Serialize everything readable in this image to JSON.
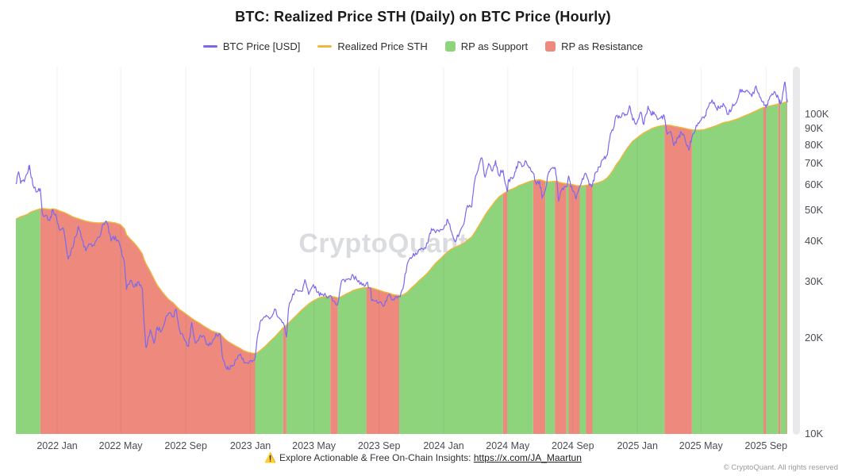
{
  "legend": {
    "items": [
      {
        "label": "BTC Price [USD]",
        "swatch": "line",
        "color": "#7b68ee"
      },
      {
        "label": "Realized Price STH",
        "swatch": "line",
        "color": "#efb73e"
      },
      {
        "label": "RP as Support",
        "swatch": "box",
        "color": "#8ed47c"
      },
      {
        "label": "RP as Resistance",
        "swatch": "box",
        "color": "#ee8a7d"
      }
    ]
  },
  "watermark": {
    "text": "CryptoQuant"
  },
  "footer": {
    "icon": "⚠️",
    "text": "Explore Actionable & Free On-Chain Insights:",
    "link_text": "https://x.com/JA_Maartun"
  },
  "copyright": "© CryptoQuant. All rights reserved",
  "chart_data": {
    "type": "line",
    "title": "BTC: Realized Price STH (Daily) on BTC Price (Hourly)",
    "y_scale": "log",
    "y_domain": [
      10000,
      140000
    ],
    "grid": "vertical-only",
    "legend_position": "top-center",
    "y_axis_side": "right",
    "y_ticks": [
      {
        "value": 10000,
        "label": "10K"
      },
      {
        "value": 20000,
        "label": "20K"
      },
      {
        "value": 30000,
        "label": "30K"
      },
      {
        "value": 40000,
        "label": "40K"
      },
      {
        "value": 50000,
        "label": "50K"
      },
      {
        "value": 60000,
        "label": "60K"
      },
      {
        "value": 70000,
        "label": "70K"
      },
      {
        "value": 80000,
        "label": "80K"
      },
      {
        "value": 90000,
        "label": "90K"
      },
      {
        "value": 100000,
        "label": "100K"
      }
    ],
    "x_ticks": [
      {
        "date": "2022-01-01",
        "label": "2022 Jan"
      },
      {
        "date": "2022-05-01",
        "label": "2022 May"
      },
      {
        "date": "2022-09-01",
        "label": "2022 Sep"
      },
      {
        "date": "2023-01-01",
        "label": "2023 Jan"
      },
      {
        "date": "2023-05-01",
        "label": "2023 May"
      },
      {
        "date": "2023-09-01",
        "label": "2023 Sep"
      },
      {
        "date": "2024-01-01",
        "label": "2024 Jan"
      },
      {
        "date": "2024-05-01",
        "label": "2024 May"
      },
      {
        "date": "2024-09-01",
        "label": "2024 Sep"
      },
      {
        "date": "2025-01-01",
        "label": "2025 Jan"
      },
      {
        "date": "2025-05-01",
        "label": "2025 May"
      },
      {
        "date": "2025-09-01",
        "label": "2025 Sep"
      }
    ],
    "series": [
      {
        "name": "BTC Price [USD]",
        "color": "#7b68ee"
      },
      {
        "name": "Realized Price STH",
        "color": "#efb73e"
      }
    ],
    "fill": {
      "rule": "area under Realized Price STH; support color where BTC >= RP, resistance color where BTC < RP",
      "support_label": "RP as Support",
      "support_color": "#8ed47c",
      "resistance_label": "RP as Resistance",
      "resistance_color": "#ee8a7d"
    },
    "columns": [
      "date",
      "btc_price_usd",
      "realized_price_sth_usd"
    ],
    "points": [
      [
        "2021-10-15",
        60500,
        47000
      ],
      [
        "2021-10-20",
        66000,
        47400
      ],
      [
        "2021-10-24",
        60800,
        47800
      ],
      [
        "2021-10-31",
        61500,
        48200
      ],
      [
        "2021-11-08",
        67500,
        48800
      ],
      [
        "2021-11-10",
        68800,
        49200
      ],
      [
        "2021-11-16",
        60200,
        49700
      ],
      [
        "2021-11-24",
        57200,
        50200
      ],
      [
        "2021-11-30",
        58500,
        50600
      ],
      [
        "2021-12-04",
        49000,
        50700
      ],
      [
        "2021-12-11",
        48300,
        50600
      ],
      [
        "2021-12-18",
        46500,
        50400
      ],
      [
        "2021-12-24",
        50300,
        50600
      ],
      [
        "2021-12-31",
        47200,
        50300
      ],
      [
        "2022-01-06",
        43300,
        49800
      ],
      [
        "2022-01-13",
        43900,
        49400
      ],
      [
        "2022-01-22",
        35200,
        48600
      ],
      [
        "2022-01-29",
        38200,
        47900
      ],
      [
        "2022-02-05",
        41400,
        47400
      ],
      [
        "2022-02-10",
        44600,
        47100
      ],
      [
        "2022-02-17",
        40500,
        46700
      ],
      [
        "2022-02-24",
        37400,
        46300
      ],
      [
        "2022-03-04",
        39200,
        46000
      ],
      [
        "2022-03-12",
        38900,
        45800
      ],
      [
        "2022-03-21",
        41200,
        45700
      ],
      [
        "2022-03-29",
        45400,
        45800
      ],
      [
        "2022-04-05",
        45800,
        46100
      ],
      [
        "2022-04-13",
        40100,
        45900
      ],
      [
        "2022-04-21",
        41500,
        45700
      ],
      [
        "2022-04-30",
        38600,
        45200
      ],
      [
        "2022-05-08",
        34300,
        43800
      ],
      [
        "2022-05-12",
        28300,
        42000
      ],
      [
        "2022-05-19",
        30200,
        40700
      ],
      [
        "2022-05-27",
        28800,
        39500
      ],
      [
        "2022-06-04",
        29900,
        38000
      ],
      [
        "2022-06-11",
        28500,
        36500
      ],
      [
        "2022-06-14",
        22500,
        35200
      ],
      [
        "2022-06-18",
        18600,
        34000
      ],
      [
        "2022-06-26",
        21200,
        32200
      ],
      [
        "2022-07-03",
        19200,
        30500
      ],
      [
        "2022-07-09",
        21600,
        29200
      ],
      [
        "2022-07-17",
        21000,
        28000
      ],
      [
        "2022-07-24",
        22600,
        27100
      ],
      [
        "2022-07-30",
        23800,
        26400
      ],
      [
        "2022-08-08",
        23200,
        25700
      ],
      [
        "2022-08-14",
        24500,
        25100
      ],
      [
        "2022-08-20",
        21200,
        24500
      ],
      [
        "2022-08-28",
        20000,
        24000
      ],
      [
        "2022-09-06",
        18800,
        23400
      ],
      [
        "2022-09-12",
        22300,
        23000
      ],
      [
        "2022-09-19",
        19200,
        22600
      ],
      [
        "2022-09-27",
        20200,
        22200
      ],
      [
        "2022-10-04",
        20300,
        21800
      ],
      [
        "2022-10-12",
        19100,
        21400
      ],
      [
        "2022-10-20",
        19200,
        21000
      ],
      [
        "2022-10-28",
        20600,
        20800
      ],
      [
        "2022-11-05",
        20400,
        20600
      ],
      [
        "2022-11-09",
        17500,
        20200
      ],
      [
        "2022-11-14",
        16400,
        19800
      ],
      [
        "2022-11-21",
        15900,
        19400
      ],
      [
        "2022-11-28",
        16400,
        19100
      ],
      [
        "2022-12-05",
        17100,
        18800
      ],
      [
        "2022-12-13",
        17800,
        18500
      ],
      [
        "2022-12-20",
        16700,
        18200
      ],
      [
        "2022-12-28",
        16600,
        18000
      ],
      [
        "2023-01-04",
        16800,
        17900
      ],
      [
        "2023-01-10",
        17300,
        17850
      ],
      [
        "2023-01-14",
        20000,
        17950
      ],
      [
        "2023-01-21",
        22700,
        18300
      ],
      [
        "2023-01-29",
        23200,
        18800
      ],
      [
        "2023-02-06",
        22900,
        19400
      ],
      [
        "2023-02-16",
        24600,
        20100
      ],
      [
        "2023-02-24",
        23100,
        20800
      ],
      [
        "2023-03-04",
        22300,
        21500
      ],
      [
        "2023-03-10",
        20100,
        21900
      ],
      [
        "2023-03-14",
        24700,
        22200
      ],
      [
        "2023-03-22",
        27400,
        22900
      ],
      [
        "2023-03-30",
        28200,
        23600
      ],
      [
        "2023-04-08",
        27900,
        24400
      ],
      [
        "2023-04-14",
        30400,
        24900
      ],
      [
        "2023-04-21",
        27300,
        25500
      ],
      [
        "2023-04-30",
        29300,
        26100
      ],
      [
        "2023-05-08",
        27700,
        26500
      ],
      [
        "2023-05-15",
        27200,
        26800
      ],
      [
        "2023-05-24",
        27000,
        26900
      ],
      [
        "2023-06-01",
        27100,
        26950
      ],
      [
        "2023-06-10",
        25800,
        26800
      ],
      [
        "2023-06-15",
        25500,
        26600
      ],
      [
        "2023-06-22",
        30100,
        26900
      ],
      [
        "2023-07-01",
        30500,
        27400
      ],
      [
        "2023-07-09",
        30300,
        27800
      ],
      [
        "2023-07-14",
        31300,
        28100
      ],
      [
        "2023-07-23",
        29900,
        28400
      ],
      [
        "2023-07-31",
        29200,
        28600
      ],
      [
        "2023-08-08",
        29600,
        28700
      ],
      [
        "2023-08-16",
        28500,
        28700
      ],
      [
        "2023-08-18",
        26100,
        28600
      ],
      [
        "2023-08-25",
        26000,
        28400
      ],
      [
        "2023-09-02",
        25900,
        28100
      ],
      [
        "2023-09-11",
        25200,
        27800
      ],
      [
        "2023-09-19",
        27200,
        27600
      ],
      [
        "2023-09-27",
        26300,
        27300
      ],
      [
        "2023-10-02",
        26900,
        27200
      ],
      [
        "2023-10-09",
        26900,
        27100
      ],
      [
        "2023-10-16",
        28400,
        27200
      ],
      [
        "2023-10-24",
        33900,
        27700
      ],
      [
        "2023-11-01",
        35400,
        28600
      ],
      [
        "2023-11-09",
        36800,
        29400
      ],
      [
        "2023-11-16",
        37800,
        30200
      ],
      [
        "2023-11-24",
        37700,
        31000
      ],
      [
        "2023-12-02",
        39500,
        31900
      ],
      [
        "2023-12-09",
        43900,
        33000
      ],
      [
        "2023-12-17",
        42600,
        34200
      ],
      [
        "2023-12-26",
        43600,
        35300
      ],
      [
        "2024-01-03",
        44900,
        36400
      ],
      [
        "2024-01-09",
        46600,
        37200
      ],
      [
        "2024-01-16",
        42800,
        37900
      ],
      [
        "2024-01-23",
        39900,
        38400
      ],
      [
        "2024-01-31",
        42600,
        38900
      ],
      [
        "2024-02-08",
        45300,
        39500
      ],
      [
        "2024-02-15",
        51800,
        40400
      ],
      [
        "2024-02-23",
        51300,
        41300
      ],
      [
        "2024-02-29",
        62400,
        42700
      ],
      [
        "2024-03-06",
        66800,
        44400
      ],
      [
        "2024-03-13",
        73100,
        46400
      ],
      [
        "2024-03-19",
        63500,
        48300
      ],
      [
        "2024-03-26",
        70100,
        50200
      ],
      [
        "2024-04-02",
        66300,
        52000
      ],
      [
        "2024-04-08",
        71600,
        53600
      ],
      [
        "2024-04-14",
        64500,
        55000
      ],
      [
        "2024-04-22",
        66800,
        56300
      ],
      [
        "2024-04-30",
        57200,
        57400
      ],
      [
        "2024-05-03",
        62500,
        57800
      ],
      [
        "2024-05-10",
        62800,
        58400
      ],
      [
        "2024-05-16",
        66300,
        59000
      ],
      [
        "2024-05-21",
        71200,
        59700
      ],
      [
        "2024-05-28",
        68500,
        60300
      ],
      [
        "2024-06-05",
        71100,
        61000
      ],
      [
        "2024-06-12",
        68200,
        61600
      ],
      [
        "2024-06-18",
        65300,
        62000
      ],
      [
        "2024-06-24",
        60200,
        62200
      ],
      [
        "2024-06-30",
        61800,
        62400
      ],
      [
        "2024-07-05",
        54600,
        62100
      ],
      [
        "2024-07-11",
        57800,
        61600
      ],
      [
        "2024-07-16",
        64800,
        61400
      ],
      [
        "2024-07-22",
        67500,
        61500
      ],
      [
        "2024-07-29",
        68200,
        61700
      ],
      [
        "2024-08-02",
        61600,
        61800
      ],
      [
        "2024-08-05",
        53400,
        61300
      ],
      [
        "2024-08-12",
        58800,
        60900
      ],
      [
        "2024-08-20",
        59300,
        60600
      ],
      [
        "2024-08-24",
        64100,
        60500
      ],
      [
        "2024-08-28",
        59300,
        60400
      ],
      [
        "2024-09-03",
        57400,
        60100
      ],
      [
        "2024-09-07",
        54300,
        59800
      ],
      [
        "2024-09-14",
        59400,
        59700
      ],
      [
        "2024-09-19",
        62900,
        59700
      ],
      [
        "2024-09-26",
        65100,
        59900
      ],
      [
        "2024-10-02",
        59900,
        60100
      ],
      [
        "2024-10-08",
        60100,
        60300
      ],
      [
        "2024-10-14",
        65800,
        60700
      ],
      [
        "2024-10-21",
        68400,
        61200
      ],
      [
        "2024-10-29",
        72300,
        62000
      ],
      [
        "2024-11-05",
        74500,
        63200
      ],
      [
        "2024-11-11",
        87000,
        65000
      ],
      [
        "2024-11-17",
        90500,
        67200
      ],
      [
        "2024-11-22",
        98800,
        69500
      ],
      [
        "2024-11-29",
        97500,
        72000
      ],
      [
        "2024-12-05",
        101000,
        74800
      ],
      [
        "2024-12-11",
        99500,
        77500
      ],
      [
        "2024-12-17",
        106300,
        80000
      ],
      [
        "2024-12-23",
        95800,
        82300
      ],
      [
        "2024-12-31",
        93800,
        84200
      ],
      [
        "2025-01-07",
        101500,
        86000
      ],
      [
        "2025-01-13",
        92800,
        87400
      ],
      [
        "2025-01-21",
        105900,
        88800
      ],
      [
        "2025-01-27",
        99500,
        89900
      ],
      [
        "2025-02-01",
        101500,
        90700
      ],
      [
        "2025-02-08",
        96200,
        91400
      ],
      [
        "2025-02-14",
        97500,
        91900
      ],
      [
        "2025-02-21",
        98500,
        92300
      ],
      [
        "2025-02-26",
        86500,
        92400
      ],
      [
        "2025-03-05",
        88200,
        92200
      ],
      [
        "2025-03-11",
        79800,
        91700
      ],
      [
        "2025-03-19",
        84200,
        91200
      ],
      [
        "2025-03-25",
        87800,
        90800
      ],
      [
        "2025-04-01",
        83500,
        90300
      ],
      [
        "2025-04-08",
        77200,
        89700
      ],
      [
        "2025-04-14",
        84800,
        89300
      ],
      [
        "2025-04-22",
        92300,
        89100
      ],
      [
        "2025-04-29",
        95000,
        89200
      ],
      [
        "2025-05-07",
        97200,
        89500
      ],
      [
        "2025-05-13",
        104000,
        90100
      ],
      [
        "2025-05-22",
        110800,
        91100
      ],
      [
        "2025-05-30",
        104500,
        92100
      ],
      [
        "2025-06-06",
        104300,
        93100
      ],
      [
        "2025-06-12",
        108000,
        94000
      ],
      [
        "2025-06-22",
        99800,
        94800
      ],
      [
        "2025-06-30",
        107500,
        95600
      ],
      [
        "2025-07-07",
        108800,
        96400
      ],
      [
        "2025-07-14",
        119800,
        97400
      ],
      [
        "2025-07-21",
        117800,
        98600
      ],
      [
        "2025-07-29",
        117500,
        99800
      ],
      [
        "2025-08-05",
        113500,
        101000
      ],
      [
        "2025-08-13",
        122600,
        102400
      ],
      [
        "2025-08-20",
        113000,
        103800
      ],
      [
        "2025-08-27",
        109500,
        104900
      ],
      [
        "2025-09-01",
        104800,
        105400
      ],
      [
        "2025-09-05",
        110300,
        105800
      ],
      [
        "2025-09-12",
        115800,
        106400
      ],
      [
        "2025-09-18",
        117200,
        107000
      ],
      [
        "2025-09-24",
        112500,
        107600
      ],
      [
        "2025-09-28",
        107600,
        108000
      ],
      [
        "2025-10-02",
        114300,
        108400
      ],
      [
        "2025-10-06",
        125800,
        108900
      ],
      [
        "2025-10-08",
        121500,
        109200
      ],
      [
        "2025-10-10",
        110800,
        109400
      ],
      [
        "2025-10-11",
        108900,
        109500
      ]
    ]
  }
}
